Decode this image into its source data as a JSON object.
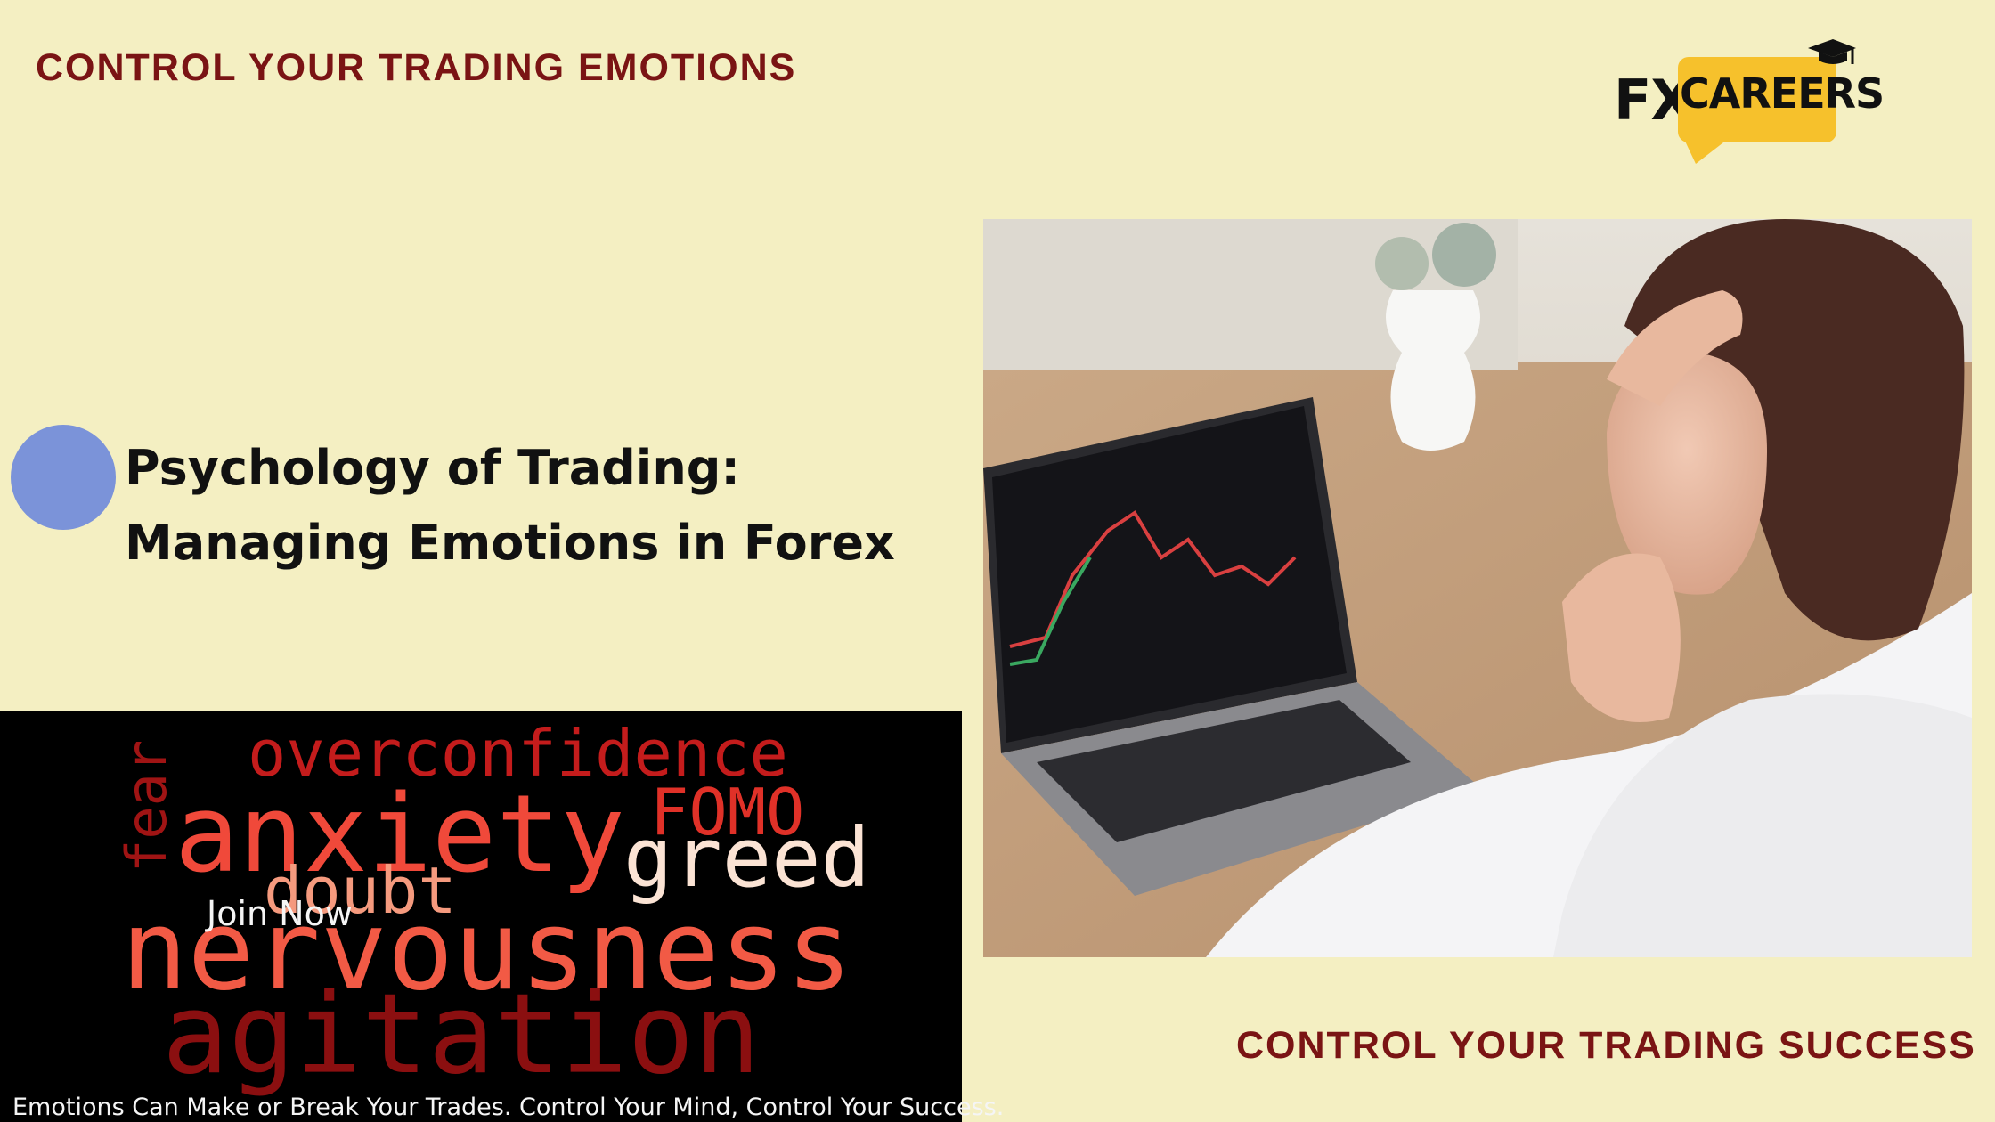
{
  "top_heading": "Control Your Trading Emotions",
  "bottom_heading": "Control Your Trading Success",
  "logo": {
    "fx": "FX",
    "careers": "CAREERS",
    "brand_color": "#f6c12c"
  },
  "title": {
    "line1": "Psychology of Trading:",
    "line2": "Managing Emotions in Forex"
  },
  "wordcloud": {
    "overconfidence": "overconfidence",
    "fear": "fear",
    "anxiety": "anxiety",
    "fomo": "FOMO",
    "greed": "greed",
    "doubt": "doubt",
    "nervousness": "nervousness",
    "agitation": "agitation"
  },
  "join_label": "Join Now",
  "footer_text": "Emotions Can Make or Break Your Trades. Control Your Mind, Control Your Success.",
  "colors": {
    "background": "#f4efc2",
    "heading": "#7a1414",
    "accent_circle": "#7b93d9"
  }
}
